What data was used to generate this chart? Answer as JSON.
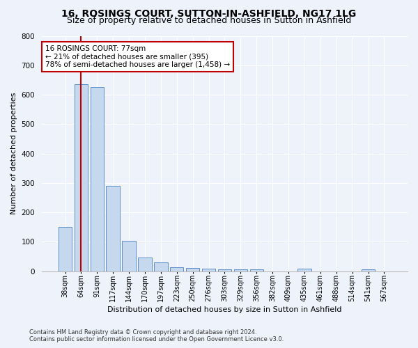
{
  "title": "16, ROSINGS COURT, SUTTON-IN-ASHFIELD, NG17 1LG",
  "subtitle": "Size of property relative to detached houses in Sutton in Ashfield",
  "xlabel": "Distribution of detached houses by size in Sutton in Ashfield",
  "ylabel": "Number of detached properties",
  "categories": [
    "38sqm",
    "64sqm",
    "91sqm",
    "117sqm",
    "144sqm",
    "170sqm",
    "197sqm",
    "223sqm",
    "250sqm",
    "276sqm",
    "303sqm",
    "329sqm",
    "356sqm",
    "382sqm",
    "409sqm",
    "435sqm",
    "461sqm",
    "488sqm",
    "514sqm",
    "541sqm",
    "567sqm"
  ],
  "values": [
    150,
    635,
    625,
    290,
    103,
    46,
    30,
    12,
    10,
    8,
    6,
    5,
    5,
    0,
    0,
    8,
    0,
    0,
    0,
    5,
    0
  ],
  "bar_color": "#c5d8ed",
  "bar_edge_color": "#5b8dc8",
  "background_color": "#eef2fb",
  "vline_x_idx": 1,
  "vline_color": "#c00000",
  "annotation_line1": "16 ROSINGS COURT: 77sqm",
  "annotation_line2": "← 21% of detached houses are smaller (395)",
  "annotation_line3": "78% of semi-detached houses are larger (1,458) →",
  "annotation_box_color": "white",
  "annotation_box_edge": "#c00000",
  "footer": "Contains HM Land Registry data © Crown copyright and database right 2024.\nContains public sector information licensed under the Open Government Licence v3.0.",
  "ylim": [
    0,
    800
  ],
  "yticks": [
    0,
    100,
    200,
    300,
    400,
    500,
    600,
    700,
    800
  ],
  "title_fontsize": 10,
  "subtitle_fontsize": 9
}
